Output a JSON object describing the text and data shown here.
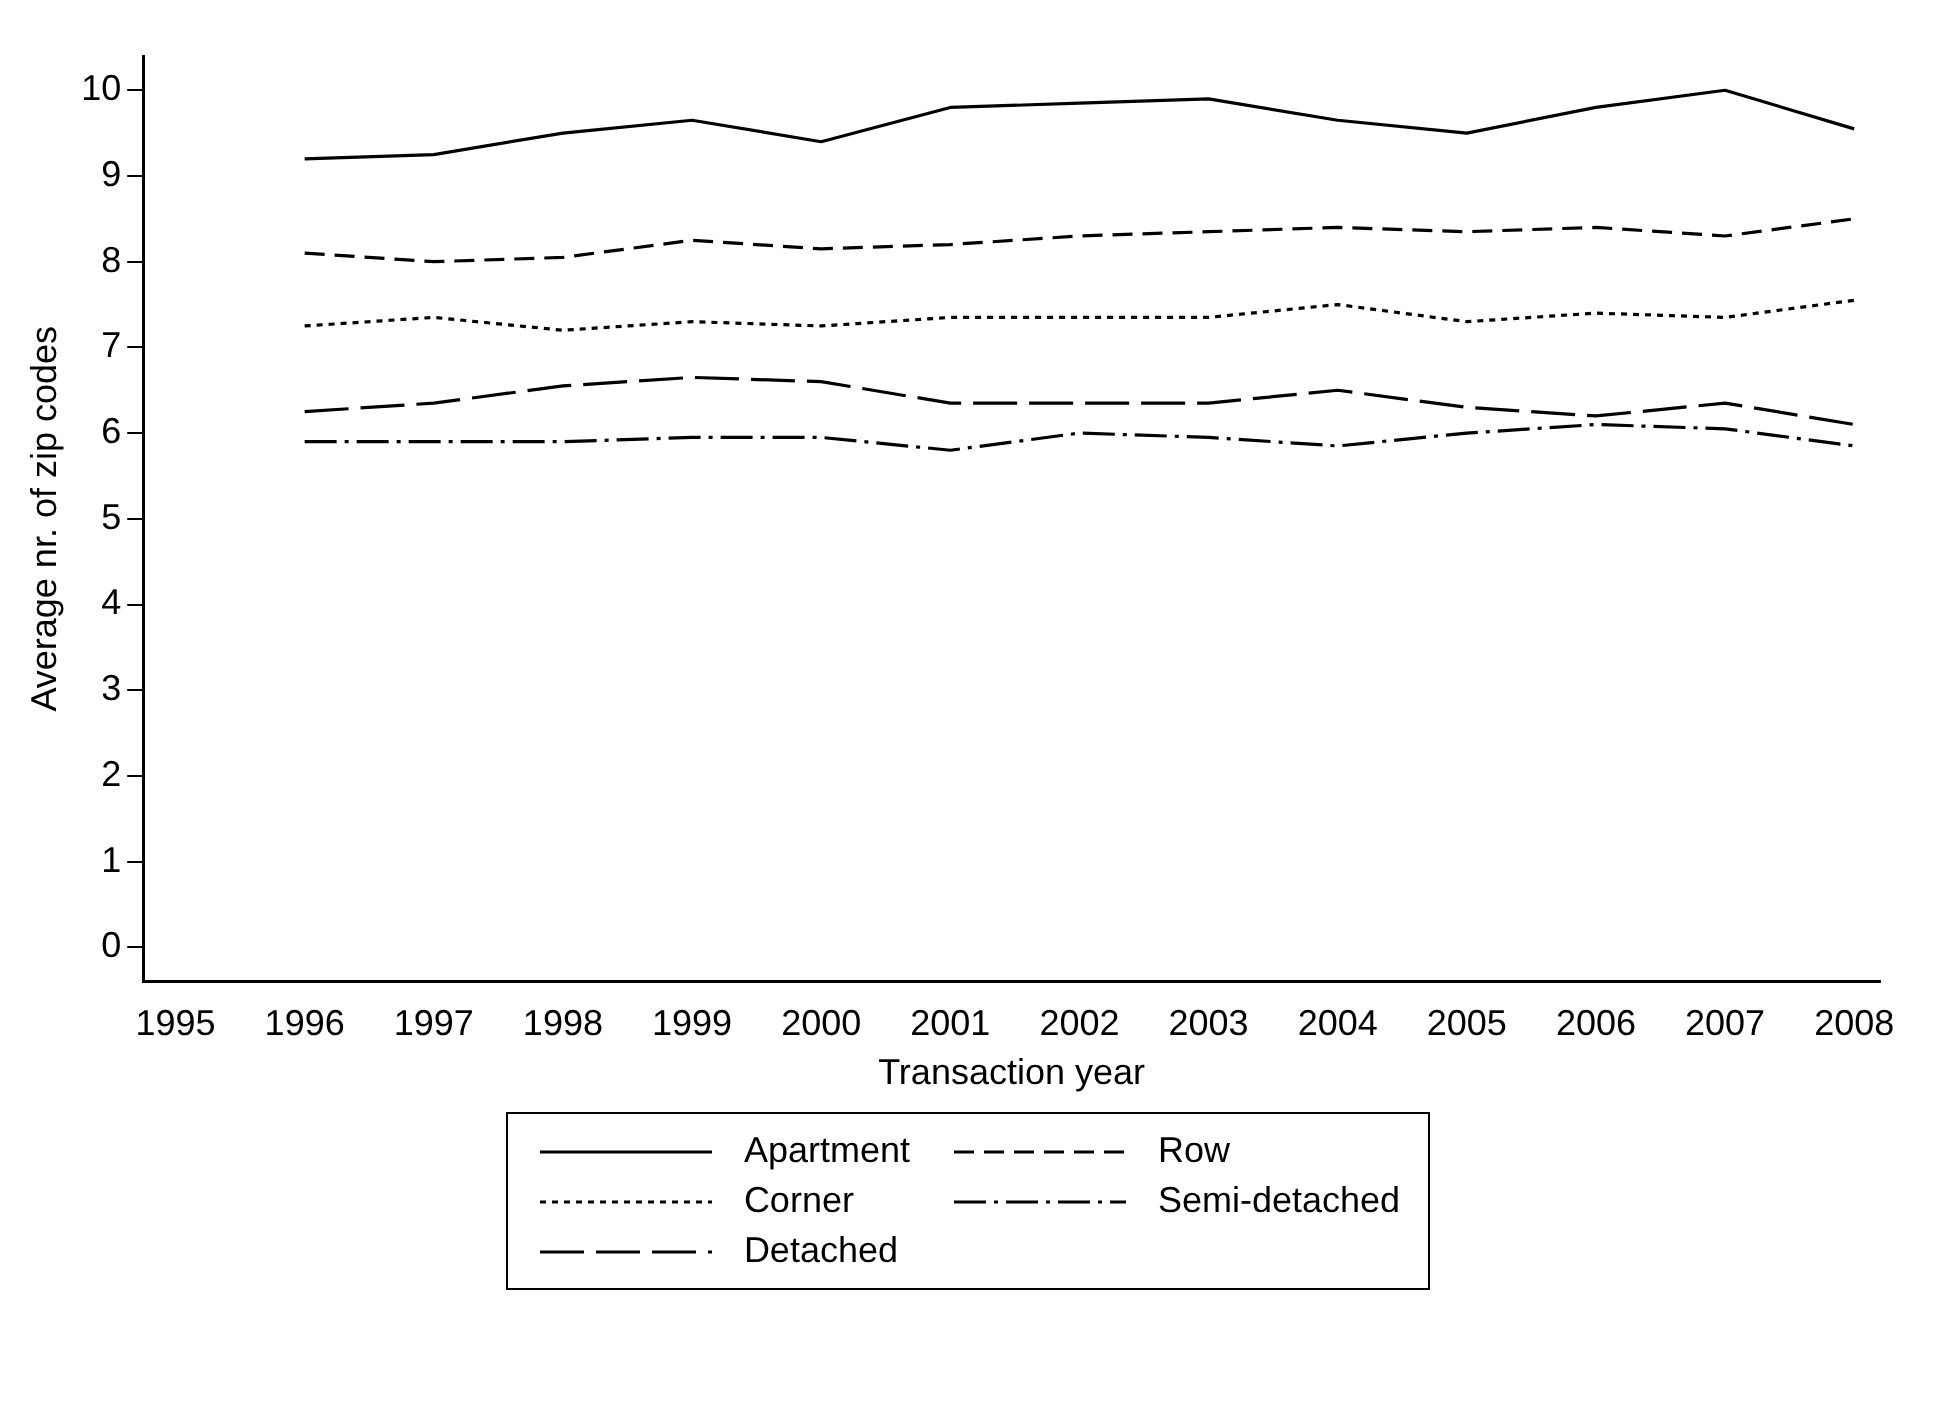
{
  "chart_data": {
    "type": "line",
    "xlabel": "Transaction year",
    "ylabel": "Average nr. of zip codes",
    "x": [
      1996,
      1997,
      1998,
      1999,
      2000,
      2001,
      2002,
      2003,
      2004,
      2005,
      2006,
      2007,
      2008
    ],
    "xlim": [
      1994.75,
      2008.2
    ],
    "xticks": [
      1995,
      1996,
      1997,
      1998,
      1999,
      2000,
      2001,
      2002,
      2003,
      2004,
      2005,
      2006,
      2007,
      2008
    ],
    "ylim": [
      -0.4,
      10.4
    ],
    "yticks": [
      0,
      1,
      2,
      3,
      4,
      5,
      6,
      7,
      8,
      9,
      10
    ],
    "grid": false,
    "legend": "bottom",
    "marker": "none",
    "series": [
      {
        "name": "Apartment",
        "color": "#000000",
        "line_style": "solid",
        "values": [
          9.2,
          9.25,
          9.5,
          9.65,
          9.4,
          9.8,
          9.85,
          9.9,
          9.65,
          9.5,
          9.8,
          10.0,
          9.55
        ]
      },
      {
        "name": "Row",
        "color": "#000000",
        "line_style": "dashed",
        "values": [
          8.1,
          8.0,
          8.05,
          8.25,
          8.15,
          8.2,
          8.3,
          8.35,
          8.4,
          8.35,
          8.4,
          8.3,
          8.5
        ]
      },
      {
        "name": "Corner",
        "color": "#000000",
        "line_style": "dotted",
        "values": [
          7.25,
          7.35,
          7.2,
          7.3,
          7.25,
          7.35,
          7.35,
          7.35,
          7.5,
          7.3,
          7.4,
          7.35,
          7.55
        ]
      },
      {
        "name": "Semi-detached",
        "color": "#000000",
        "line_style": "dashed",
        "values": [
          5.9,
          5.9,
          5.9,
          5.95,
          5.95,
          5.8,
          6.0,
          5.95,
          5.85,
          6.0,
          6.1,
          6.05,
          5.85
        ]
      },
      {
        "name": "Detached",
        "color": "#000000",
        "line_style": "dashed",
        "values": [
          6.25,
          6.35,
          6.55,
          6.65,
          6.6,
          6.35,
          6.35,
          6.35,
          6.5,
          6.3,
          6.2,
          6.35,
          6.1
        ]
      }
    ]
  }
}
